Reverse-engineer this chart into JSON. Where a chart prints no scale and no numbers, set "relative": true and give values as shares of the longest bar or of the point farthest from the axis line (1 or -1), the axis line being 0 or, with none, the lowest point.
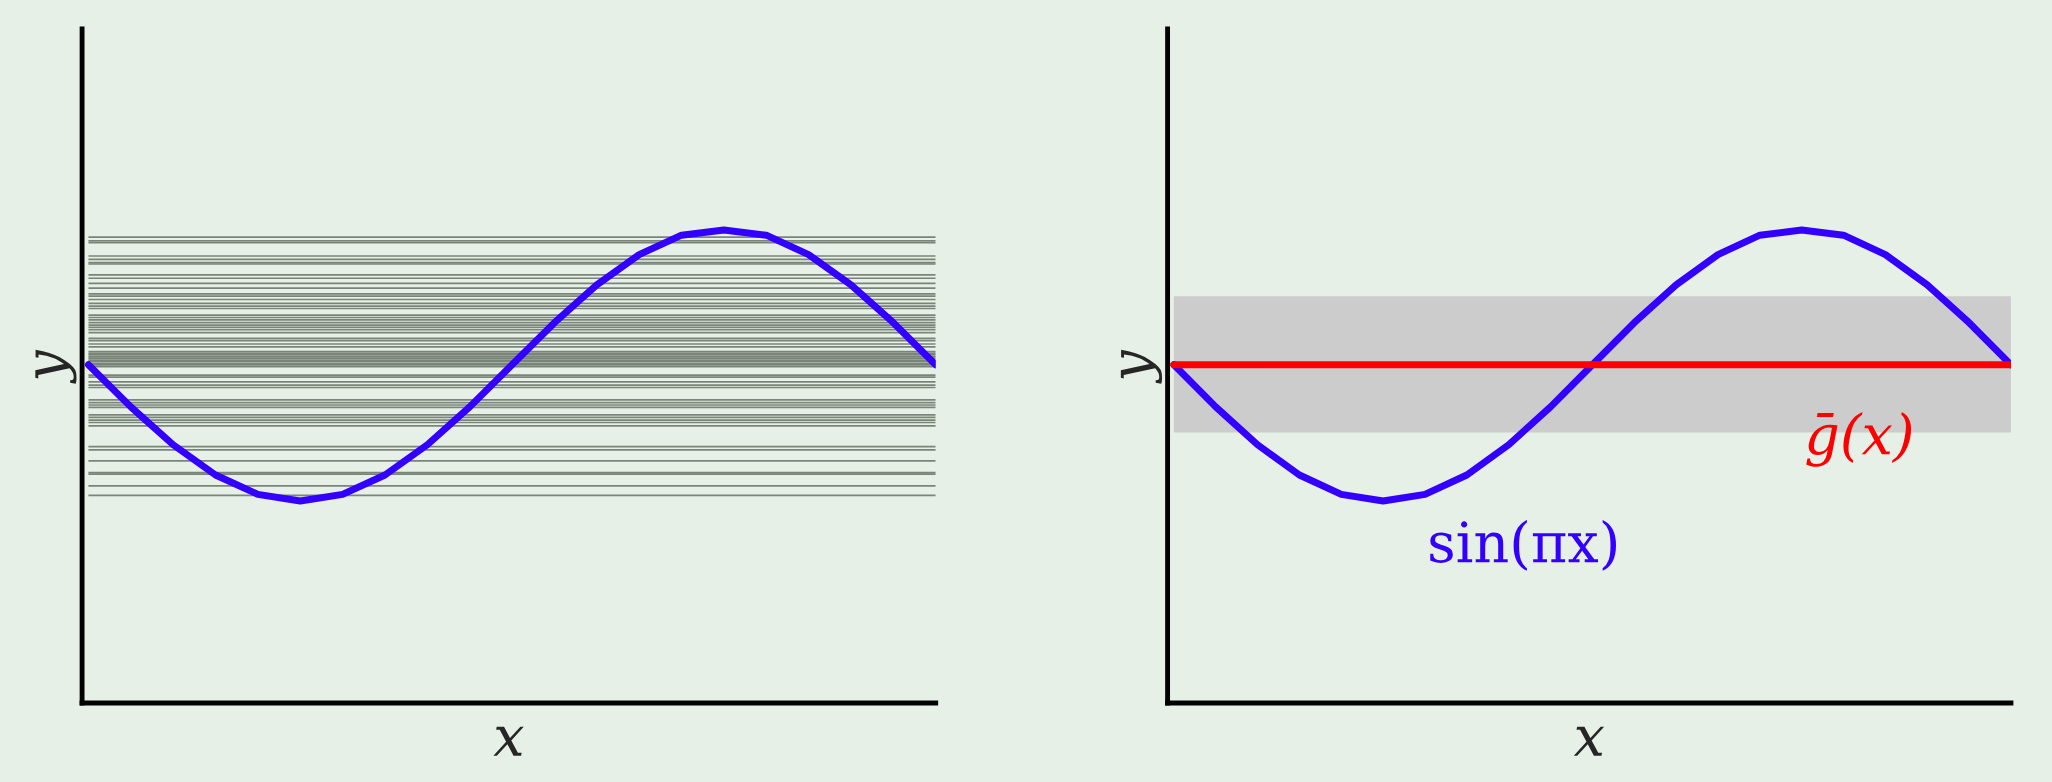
{
  "chart_data": [
    {
      "type": "line",
      "relative": true,
      "xlabel": "x",
      "ylabel": "y",
      "categories": [
        null,
        null,
        null,
        null,
        null,
        null,
        null,
        null,
        null,
        null,
        null,
        null,
        null,
        null,
        null,
        null,
        null,
        null,
        null,
        null,
        null
      ],
      "series": [
        {
          "color": "#3300ff",
          "values": [
            0.715,
            0.626,
            0.546,
            0.482,
            0.441,
            0.427,
            0.441,
            0.482,
            0.546,
            0.626,
            0.715,
            0.804,
            0.884,
            0.948,
            0.989,
            1.0,
            0.989,
            0.948,
            0.884,
            0.804,
            0.715
          ]
        }
      ],
      "ref_lines": [
        {
          "axis": "y",
          "value": 0.985,
          "color": "#7a857a"
        },
        {
          "axis": "y",
          "value": 0.977,
          "color": "#7a857a"
        },
        {
          "axis": "y",
          "value": 0.973,
          "color": "#7a857a"
        },
        {
          "axis": "y",
          "value": 0.945,
          "color": "#7a857a"
        },
        {
          "axis": "y",
          "value": 0.938,
          "color": "#7a857a"
        },
        {
          "axis": "y",
          "value": 0.931,
          "color": "#7a857a"
        },
        {
          "axis": "y",
          "value": 0.928,
          "color": "#7a857a"
        },
        {
          "axis": "y",
          "value": 0.905,
          "color": "#7a857a"
        },
        {
          "axis": "y",
          "value": 0.898,
          "color": "#7a857a"
        },
        {
          "axis": "y",
          "value": 0.887,
          "color": "#7a857a"
        },
        {
          "axis": "y",
          "value": 0.877,
          "color": "#7a857a"
        },
        {
          "axis": "y",
          "value": 0.865,
          "color": "#7a857a"
        },
        {
          "axis": "y",
          "value": 0.86,
          "color": "#7a857a"
        },
        {
          "axis": "y",
          "value": 0.853,
          "color": "#7a857a"
        },
        {
          "axis": "y",
          "value": 0.845,
          "color": "#7a857a"
        },
        {
          "axis": "y",
          "value": 0.839,
          "color": "#7a857a"
        },
        {
          "axis": "y",
          "value": 0.834,
          "color": "#7a857a"
        },
        {
          "axis": "y",
          "value": 0.82,
          "color": "#7a857a"
        },
        {
          "axis": "y",
          "value": 0.815,
          "color": "#7a857a"
        },
        {
          "axis": "y",
          "value": 0.81,
          "color": "#7a857a"
        },
        {
          "axis": "y",
          "value": 0.804,
          "color": "#7a857a"
        },
        {
          "axis": "y",
          "value": 0.799,
          "color": "#7a857a"
        },
        {
          "axis": "y",
          "value": 0.794,
          "color": "#7a857a"
        },
        {
          "axis": "y",
          "value": 0.789,
          "color": "#7a857a"
        },
        {
          "axis": "y",
          "value": 0.783,
          "color": "#7a857a"
        },
        {
          "axis": "y",
          "value": 0.771,
          "color": "#7a857a"
        },
        {
          "axis": "y",
          "value": 0.766,
          "color": "#7a857a"
        },
        {
          "axis": "y",
          "value": 0.759,
          "color": "#7a857a"
        },
        {
          "axis": "y",
          "value": 0.753,
          "color": "#7a857a"
        },
        {
          "axis": "y",
          "value": 0.743,
          "color": "#7a857a"
        },
        {
          "axis": "y",
          "value": 0.739,
          "color": "#7a857a"
        },
        {
          "axis": "y",
          "value": 0.736,
          "color": "#7a857a"
        },
        {
          "axis": "y",
          "value": 0.732,
          "color": "#7a857a"
        },
        {
          "axis": "y",
          "value": 0.729,
          "color": "#7a857a"
        },
        {
          "axis": "y",
          "value": 0.725,
          "color": "#7a857a"
        },
        {
          "axis": "y",
          "value": 0.722,
          "color": "#7a857a"
        },
        {
          "axis": "y",
          "value": 0.718,
          "color": "#7a857a"
        },
        {
          "axis": "y",
          "value": 0.715,
          "color": "#7a857a"
        },
        {
          "axis": "y",
          "value": 0.711,
          "color": "#7a857a"
        },
        {
          "axis": "y",
          "value": 0.693,
          "color": "#7a857a"
        },
        {
          "axis": "y",
          "value": 0.689,
          "color": "#7a857a"
        },
        {
          "axis": "y",
          "value": 0.679,
          "color": "#7a857a"
        },
        {
          "axis": "y",
          "value": 0.672,
          "color": "#7a857a"
        },
        {
          "axis": "y",
          "value": 0.667,
          "color": "#7a857a"
        },
        {
          "axis": "y",
          "value": 0.641,
          "color": "#7a857a"
        },
        {
          "axis": "y",
          "value": 0.635,
          "color": "#7a857a"
        },
        {
          "axis": "y",
          "value": 0.63,
          "color": "#7a857a"
        },
        {
          "axis": "y",
          "value": 0.625,
          "color": "#7a857a"
        },
        {
          "axis": "y",
          "value": 0.609,
          "color": "#7a857a"
        },
        {
          "axis": "y",
          "value": 0.604,
          "color": "#7a857a"
        },
        {
          "axis": "y",
          "value": 0.598,
          "color": "#7a857a"
        },
        {
          "axis": "y",
          "value": 0.593,
          "color": "#7a857a"
        },
        {
          "axis": "y",
          "value": 0.586,
          "color": "#7a857a"
        },
        {
          "axis": "y",
          "value": 0.542,
          "color": "#7a857a"
        },
        {
          "axis": "y",
          "value": 0.535,
          "color": "#7a857a"
        },
        {
          "axis": "y",
          "value": 0.512,
          "color": "#7a857a"
        },
        {
          "axis": "y",
          "value": 0.487,
          "color": "#7a857a"
        },
        {
          "axis": "y",
          "value": 0.484,
          "color": "#7a857a"
        },
        {
          "axis": "y",
          "value": 0.459,
          "color": "#7a857a"
        },
        {
          "axis": "y",
          "value": 0.439,
          "color": "#7a857a"
        }
      ]
    },
    {
      "type": "line",
      "relative": true,
      "xlabel": "x",
      "ylabel": "y",
      "categories": [
        null,
        null,
        null,
        null,
        null,
        null,
        null,
        null,
        null,
        null,
        null,
        null,
        null,
        null,
        null,
        null,
        null,
        null,
        null,
        null,
        null
      ],
      "series": [
        {
          "name": "sin(πx)",
          "color": "#3300ff",
          "values": [
            0.715,
            0.626,
            0.546,
            0.482,
            0.441,
            0.427,
            0.441,
            0.482,
            0.546,
            0.626,
            0.715,
            0.804,
            0.884,
            0.948,
            0.989,
            1.0,
            0.989,
            0.948,
            0.884,
            0.804,
            0.715
          ]
        },
        {
          "name": "ḡ(x)",
          "color": "#ff0000",
          "values": [
            0.715,
            0.715,
            0.715,
            0.715,
            0.715,
            0.715,
            0.715,
            0.715,
            0.715,
            0.715,
            0.715,
            0.715,
            0.715,
            0.715,
            0.715,
            0.715,
            0.715,
            0.715,
            0.715,
            0.715,
            0.715
          ]
        }
      ],
      "bands": [
        {
          "axis": "y",
          "from": 0.572,
          "to": 0.86,
          "color": "#cccccc"
        }
      ]
    }
  ]
}
